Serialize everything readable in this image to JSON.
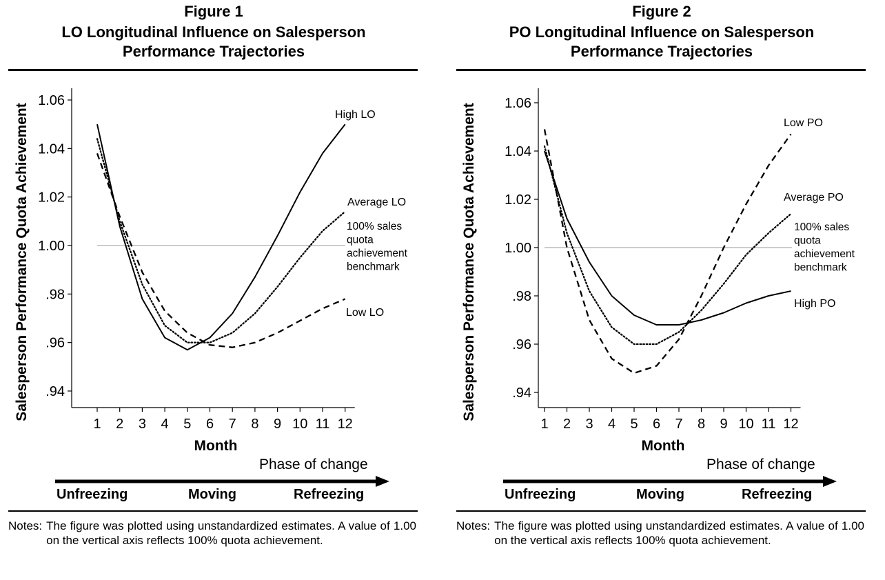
{
  "figures": [
    {
      "label": "Figure 1",
      "title_line1": "LO Longitudinal Influence on Salesperson",
      "title_line2": "Performance Trajectories",
      "phase_label": "Phase of change",
      "stages": [
        "Unfreezing",
        "Moving",
        "Refreezing"
      ],
      "notes_lead": "Notes:",
      "notes_text": "The figure was plotted using unstandardized estimates. A value of 1.00 on the vertical axis reflects 100% quota achievement."
    },
    {
      "label": "Figure 2",
      "title_line1": "PO Longitudinal Influence on Salesperson",
      "title_line2": "Performance Trajectories",
      "phase_label": "Phase of change",
      "stages": [
        "Unfreezing",
        "Moving",
        "Refreezing"
      ],
      "notes_lead": "Notes:",
      "notes_text": "The figure was plotted using unstandardized estimates. A value of 1.00 on the vertical axis reflects 100% quota achievement."
    }
  ],
  "chart_data": [
    {
      "type": "line",
      "title": "LO Longitudinal Influence on Salesperson Performance Trajectories",
      "xlabel": "Month",
      "ylabel": "Salesperson Performance Quota Achievement",
      "x": [
        1,
        2,
        3,
        4,
        5,
        6,
        7,
        8,
        9,
        10,
        11,
        12
      ],
      "xticks": [
        "1",
        "2",
        "3",
        "4",
        "5",
        "6",
        "7",
        "8",
        "9",
        "10",
        "11",
        "12"
      ],
      "yticks": [
        {
          "value": 1.06,
          "label": "1.06"
        },
        {
          "value": 1.04,
          "label": "1.04"
        },
        {
          "value": 1.02,
          "label": "1.02"
        },
        {
          "value": 1.0,
          "label": "1.00"
        },
        {
          "value": 0.98,
          "label": ".98"
        },
        {
          "value": 0.96,
          "label": ".96"
        },
        {
          "value": 0.94,
          "label": ".94"
        }
      ],
      "ylim": [
        0.934,
        1.066
      ],
      "grid": false,
      "reference_line": {
        "value": 1.0,
        "lines": [
          "100% sales",
          "quota",
          "achievement",
          "benchmark"
        ]
      },
      "series": [
        {
          "name": "High LO",
          "style": "solid",
          "values": [
            1.05,
            1.008,
            0.978,
            0.962,
            0.957,
            0.962,
            0.972,
            0.987,
            1.004,
            1.022,
            1.038,
            1.05
          ]
        },
        {
          "name": "Average LO",
          "style": "dotted",
          "values": [
            1.044,
            1.01,
            0.984,
            0.967,
            0.96,
            0.96,
            0.964,
            0.972,
            0.983,
            0.995,
            1.006,
            1.014
          ]
        },
        {
          "name": "Low LO",
          "style": "dashed",
          "values": [
            1.038,
            1.012,
            0.989,
            0.973,
            0.964,
            0.959,
            0.958,
            0.96,
            0.964,
            0.969,
            0.974,
            0.978
          ]
        }
      ]
    },
    {
      "type": "line",
      "title": "PO Longitudinal Influence on Salesperson Performance Trajectories",
      "xlabel": "Month",
      "ylabel": "Salesperson Performance Quota Achievement",
      "x": [
        1,
        2,
        3,
        4,
        5,
        6,
        7,
        8,
        9,
        10,
        11,
        12
      ],
      "xticks": [
        "1",
        "2",
        "3",
        "4",
        "5",
        "6",
        "7",
        "8",
        "9",
        "10",
        "11",
        "12"
      ],
      "yticks": [
        {
          "value": 1.06,
          "label": "1.06"
        },
        {
          "value": 1.04,
          "label": "1.04"
        },
        {
          "value": 1.02,
          "label": "1.02"
        },
        {
          "value": 1.0,
          "label": "1.00"
        },
        {
          "value": 0.98,
          "label": ".98"
        },
        {
          "value": 0.96,
          "label": ".96"
        },
        {
          "value": 0.94,
          "label": ".94"
        }
      ],
      "ylim": [
        0.934,
        1.066
      ],
      "grid": false,
      "reference_line": {
        "value": 1.0,
        "lines": [
          "100% sales",
          "quota",
          "achievement",
          "benchmark"
        ]
      },
      "series": [
        {
          "name": "Low PO",
          "style": "dashed",
          "values": [
            1.049,
            1.0,
            0.97,
            0.954,
            0.948,
            0.951,
            0.962,
            0.98,
            1.0,
            1.018,
            1.034,
            1.047
          ]
        },
        {
          "name": "Average PO",
          "style": "dotted",
          "values": [
            1.042,
            1.006,
            0.982,
            0.967,
            0.96,
            0.96,
            0.965,
            0.974,
            0.985,
            0.997,
            1.006,
            1.014
          ]
        },
        {
          "name": "High PO",
          "style": "solid",
          "values": [
            1.04,
            1.012,
            0.994,
            0.98,
            0.972,
            0.968,
            0.968,
            0.97,
            0.973,
            0.977,
            0.98,
            0.982
          ]
        }
      ]
    }
  ]
}
